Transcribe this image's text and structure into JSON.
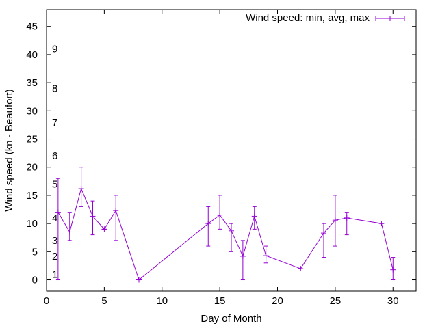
{
  "chart_data": {
    "type": "line",
    "title": "",
    "xlabel": "Day of Month",
    "ylabel": "Wind speed (kn - Beaufort)",
    "xlim": [
      0,
      32
    ],
    "ylim": [
      -2,
      48
    ],
    "x_ticks": [
      0,
      5,
      10,
      15,
      20,
      25,
      30
    ],
    "y_ticks": [
      0,
      5,
      10,
      15,
      20,
      25,
      30,
      35,
      40,
      45
    ],
    "grid": false,
    "legend": {
      "position": "top-right",
      "entries": [
        "Wind speed: min, avg, max"
      ]
    },
    "beaufort_labels": [
      {
        "label": "1",
        "knots": 1
      },
      {
        "label": "2",
        "knots": 4.2
      },
      {
        "label": "3",
        "knots": 7
      },
      {
        "label": "4",
        "knots": 11
      },
      {
        "label": "5",
        "knots": 17
      },
      {
        "label": "6",
        "knots": 22
      },
      {
        "label": "7",
        "knots": 28
      },
      {
        "label": "8",
        "knots": 34
      },
      {
        "label": "9",
        "knots": 41
      }
    ],
    "series": [
      {
        "name": "Wind speed: min, avg, max",
        "color": "#9400d3",
        "style": "errorlines",
        "points": [
          {
            "x": 1,
            "min": 0,
            "avg": 12,
            "max": 18
          },
          {
            "x": 2,
            "min": 7,
            "avg": 8.5,
            "max": 12
          },
          {
            "x": 3,
            "min": 13,
            "avg": 16.2,
            "max": 20
          },
          {
            "x": 4,
            "min": 8,
            "avg": 11.3,
            "max": 14
          },
          {
            "x": 5,
            "min": 9,
            "avg": 9,
            "max": 9
          },
          {
            "x": 6,
            "min": 7,
            "avg": 12.3,
            "max": 15
          },
          {
            "x": 8,
            "min": 0,
            "avg": 0,
            "max": 0
          },
          {
            "x": 14,
            "min": 6,
            "avg": 10,
            "max": 13
          },
          {
            "x": 15,
            "min": 9,
            "avg": 11.5,
            "max": 15
          },
          {
            "x": 16,
            "min": 5,
            "avg": 8.7,
            "max": 10
          },
          {
            "x": 17,
            "min": 0,
            "avg": 4.2,
            "max": 7
          },
          {
            "x": 18,
            "min": 9,
            "avg": 11.3,
            "max": 13
          },
          {
            "x": 19,
            "min": 3,
            "avg": 4.3,
            "max": 6
          },
          {
            "x": 22,
            "min": 2,
            "avg": 2,
            "max": 2
          },
          {
            "x": 24,
            "min": 4,
            "avg": 8.3,
            "max": 10
          },
          {
            "x": 25,
            "min": 6,
            "avg": 10.6,
            "max": 15
          },
          {
            "x": 26,
            "min": 8,
            "avg": 11,
            "max": 12
          },
          {
            "x": 29,
            "min": 10,
            "avg": 10,
            "max": 10
          },
          {
            "x": 30,
            "min": 0,
            "avg": 1.8,
            "max": 4
          }
        ]
      }
    ]
  }
}
